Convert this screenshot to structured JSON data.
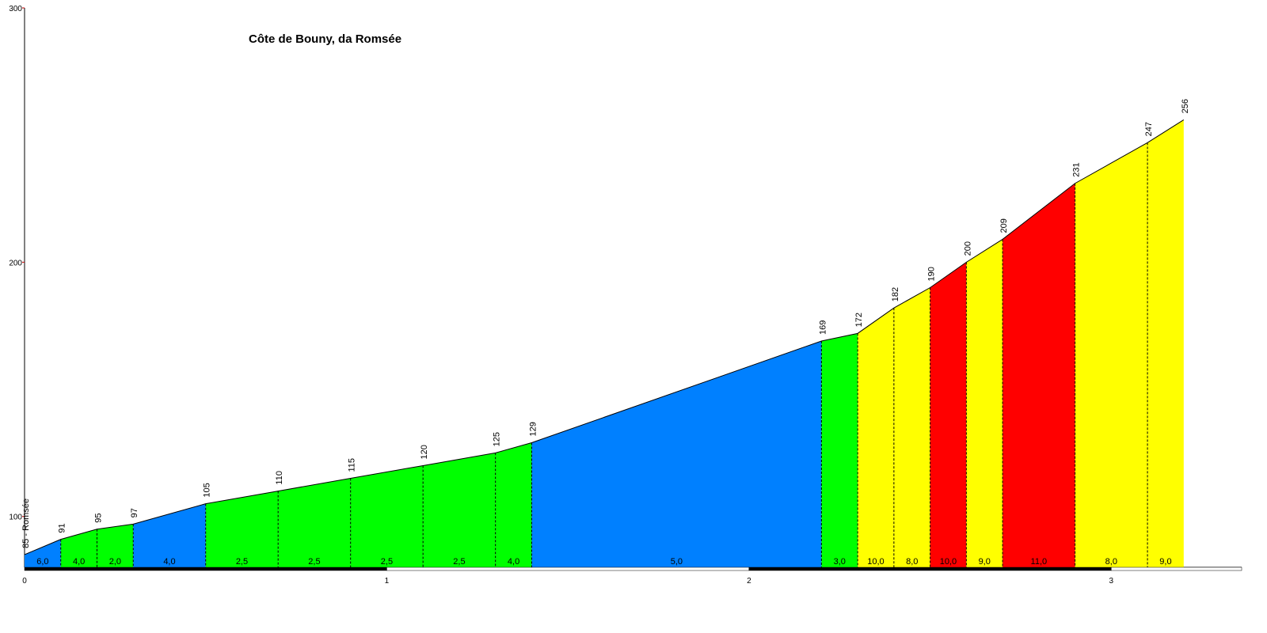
{
  "chart_data": {
    "type": "elevation-profile",
    "title": "Côte de Bouny, da Romsée",
    "x": [
      0,
      0.1,
      0.2,
      0.3,
      0.5,
      0.7,
      0.9,
      1.1,
      1.3,
      1.4,
      2.2,
      2.3,
      2.4,
      2.5,
      2.6,
      2.7,
      2.9,
      3.1,
      3.2
    ],
    "values": [
      85,
      91,
      95,
      97,
      105,
      110,
      115,
      120,
      125,
      129,
      169,
      172,
      182,
      190,
      200,
      209,
      231,
      247,
      256
    ],
    "value_labels": [
      "85 - Romsée",
      "91",
      "95",
      "97",
      "105",
      "110",
      "115",
      "120",
      "125",
      "129",
      "169",
      "172",
      "182",
      "190",
      "200",
      "209",
      "231",
      "247",
      "256"
    ],
    "gradients": [
      6,
      4,
      2,
      4,
      2.5,
      2.5,
      2.5,
      2.5,
      4,
      5,
      3,
      10,
      8,
      10,
      9,
      11,
      8,
      9
    ],
    "gradient_labels": [
      "6,0",
      "4,0",
      "2,0",
      "4,0",
      "2,5",
      "2,5",
      "2,5",
      "2,5",
      "4,0",
      "5,0",
      "3,0",
      "10,0",
      "8,0",
      "10,0",
      "9,0",
      "11,0",
      "8,0",
      "9,0"
    ],
    "segment_colors": [
      "#0080ff",
      "#00ff00",
      "#00ff00",
      "#0080ff",
      "#00ff00",
      "#00ff00",
      "#00ff00",
      "#00ff00",
      "#00ff00",
      "#0080ff",
      "#00ff00",
      "#ffff00",
      "#ffff00",
      "#ff0000",
      "#ffff00",
      "#ff0000",
      "#ffff00",
      "#ffff00"
    ],
    "xlim": [
      0,
      3.36
    ],
    "xticks": [
      0,
      1,
      2,
      3
    ],
    "ylim": [
      80,
      300
    ],
    "yticks": [
      100,
      200,
      300
    ]
  }
}
